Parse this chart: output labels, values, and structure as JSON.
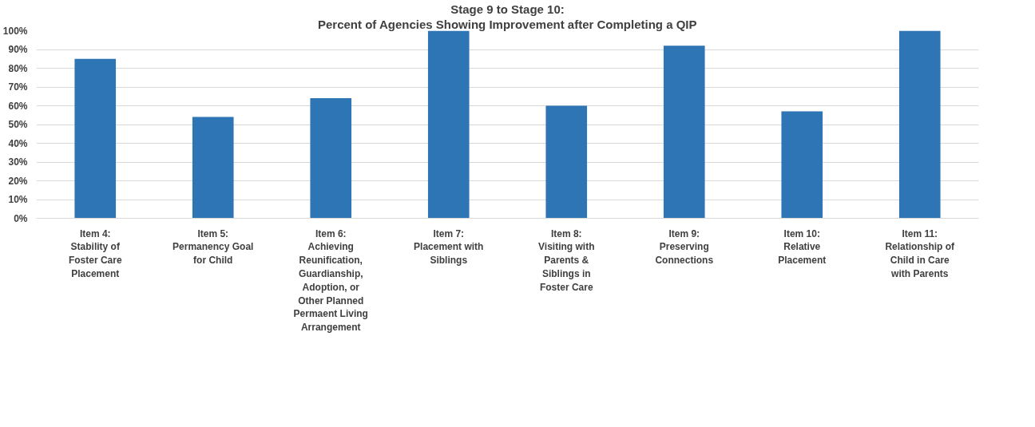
{
  "chart_data": {
    "type": "bar",
    "title": "Stage 9 to Stage 10:",
    "subtitle": "Percent of Agencies Showing Improvement after Completing a QIP",
    "categories": [
      "Item 4: Stability of Foster Care Placement",
      "Item 5: Permanency Goal for Child",
      "Item 6: Achieving Reunification, Guardianship, Adoption, or Other Planned Permaent Living Arrangement",
      "Item 7: Placement with Siblings",
      "Item 8: Visiting with Parents & Siblings in Foster Care",
      "Item 9: Preserving Connections",
      "Item 10: Relative Placement",
      "Item 11: Relationship of Child in Care with Parents"
    ],
    "values": [
      85,
      54,
      64,
      100,
      60,
      92,
      57,
      100
    ],
    "color": "#2e75b6",
    "ylim": [
      0,
      100
    ],
    "yticks": [
      {
        "value": 0,
        "label": "0%"
      },
      {
        "value": 10,
        "label": "10%"
      },
      {
        "value": 20,
        "label": "20%"
      },
      {
        "value": 30,
        "label": "30%"
      },
      {
        "value": 40,
        "label": "40%"
      },
      {
        "value": 50,
        "label": "50%"
      },
      {
        "value": 60,
        "label": "60%"
      },
      {
        "value": 70,
        "label": "70%"
      },
      {
        "value": 80,
        "label": "80%"
      },
      {
        "value": 90,
        "label": "90%"
      },
      {
        "value": 100,
        "label": "100%"
      }
    ],
    "grid": "y"
  }
}
